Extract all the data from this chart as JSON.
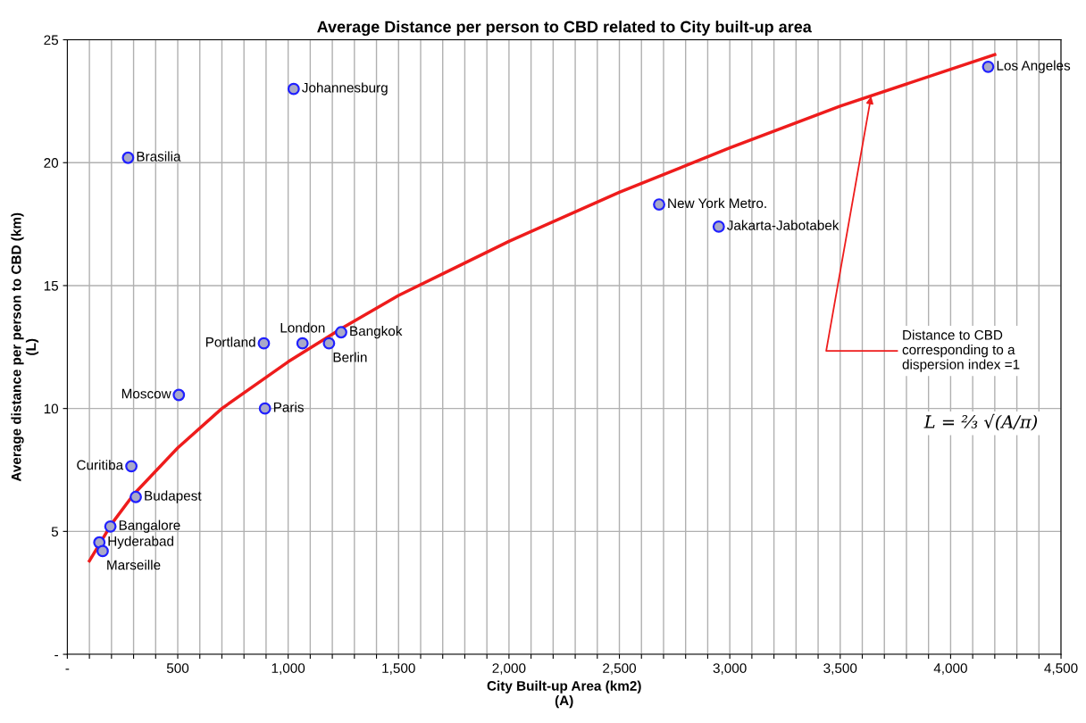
{
  "chart_data": {
    "type": "scatter",
    "title": "Average Distance per person to CBD related to City built-up area",
    "xlabel": "City Built-up Area (km2)\n(A)",
    "ylabel": "Average distance per person to CBD (km)\n(L)",
    "xlim": [
      0,
      4500
    ],
    "ylim": [
      0,
      25
    ],
    "xticks": [
      {
        "value": 0,
        "label": "-"
      },
      {
        "value": 100,
        "label": null
      },
      {
        "value": 200,
        "label": null
      },
      {
        "value": 300,
        "label": null
      },
      {
        "value": 400,
        "label": null
      },
      {
        "value": 500,
        "label": "500"
      },
      {
        "value": 600,
        "label": null
      },
      {
        "value": 700,
        "label": null
      },
      {
        "value": 800,
        "label": null
      },
      {
        "value": 900,
        "label": null
      },
      {
        "value": 1000,
        "label": "1,000"
      },
      {
        "value": 1100,
        "label": null
      },
      {
        "value": 1200,
        "label": null
      },
      {
        "value": 1300,
        "label": null
      },
      {
        "value": 1400,
        "label": null
      },
      {
        "value": 1500,
        "label": "1,500"
      },
      {
        "value": 1600,
        "label": null
      },
      {
        "value": 1700,
        "label": null
      },
      {
        "value": 1800,
        "label": null
      },
      {
        "value": 1900,
        "label": null
      },
      {
        "value": 2000,
        "label": "2,000"
      },
      {
        "value": 2100,
        "label": null
      },
      {
        "value": 2200,
        "label": null
      },
      {
        "value": 2300,
        "label": null
      },
      {
        "value": 2400,
        "label": null
      },
      {
        "value": 2500,
        "label": "2,500"
      },
      {
        "value": 2600,
        "label": null
      },
      {
        "value": 2700,
        "label": null
      },
      {
        "value": 2800,
        "label": null
      },
      {
        "value": 2900,
        "label": null
      },
      {
        "value": 3000,
        "label": "3,000"
      },
      {
        "value": 3100,
        "label": null
      },
      {
        "value": 3200,
        "label": null
      },
      {
        "value": 3300,
        "label": null
      },
      {
        "value": 3400,
        "label": null
      },
      {
        "value": 3500,
        "label": "3,500"
      },
      {
        "value": 3600,
        "label": null
      },
      {
        "value": 3700,
        "label": null
      },
      {
        "value": 3800,
        "label": null
      },
      {
        "value": 3900,
        "label": null
      },
      {
        "value": 4000,
        "label": "4,000"
      },
      {
        "value": 4100,
        "label": null
      },
      {
        "value": 4200,
        "label": null
      },
      {
        "value": 4300,
        "label": null
      },
      {
        "value": 4400,
        "label": null
      },
      {
        "value": 4500,
        "label": "4,500"
      }
    ],
    "yticks": [
      {
        "value": 0,
        "label": "-"
      },
      5,
      10,
      15,
      20,
      25
    ],
    "grid": true,
    "marker": "circle",
    "series": [
      {
        "name": "Los Angeles",
        "color": "#a9a9c8",
        "x": [
          4170
        ],
        "values": [
          23.9
        ]
      },
      {
        "name": "Johannesburg",
        "color": "#a9a9c8",
        "x": [
          1025
        ],
        "values": [
          23.0
        ]
      },
      {
        "name": "Brasilia",
        "color": "#a9a9c8",
        "x": [
          275
        ],
        "values": [
          20.2
        ]
      },
      {
        "name": "New York Metro.",
        "color": "#a9a9c8",
        "x": [
          2680
        ],
        "values": [
          18.3
        ]
      },
      {
        "name": "Jakarta-Jabotabek",
        "color": "#a9a9c8",
        "x": [
          2950
        ],
        "values": [
          17.4
        ]
      },
      {
        "name": "Bangkok",
        "color": "#a9a9c8",
        "x": [
          1240
        ],
        "values": [
          13.1
        ]
      },
      {
        "name": "Berlin",
        "color": "#a9a9c8",
        "x": [
          1185
        ],
        "values": [
          12.65
        ]
      },
      {
        "name": "London",
        "color": "#a9a9c8",
        "x": [
          1065
        ],
        "values": [
          12.65
        ]
      },
      {
        "name": "Portland",
        "color": "#a9a9c8",
        "x": [
          890
        ],
        "values": [
          12.65
        ]
      },
      {
        "name": "Moscow",
        "color": "#a9a9c8",
        "x": [
          505
        ],
        "values": [
          10.55
        ]
      },
      {
        "name": "Paris",
        "color": "#a9a9c8",
        "x": [
          895
        ],
        "values": [
          10.0
        ]
      },
      {
        "name": "Curitiba",
        "color": "#a9a9c8",
        "x": [
          290
        ],
        "values": [
          7.65
        ]
      },
      {
        "name": "Budapest",
        "color": "#a9a9c8",
        "x": [
          310
        ],
        "values": [
          6.4
        ]
      },
      {
        "name": "Bangalore",
        "color": "#a9a9c8",
        "x": [
          195
        ],
        "values": [
          5.2
        ]
      },
      {
        "name": "Hyderabad",
        "color": "#a9a9c8",
        "x": [
          145
        ],
        "values": [
          4.55
        ]
      },
      {
        "name": "Marseille",
        "color": "#a9a9c8",
        "x": [
          160
        ],
        "values": [
          4.2
        ]
      },
      {
        "type": "line",
        "color": "#ee1c1c",
        "marker": "none",
        "x": [
          100,
          200,
          300,
          500,
          700,
          1000,
          1250,
          1500,
          2000,
          2500,
          3000,
          3500,
          4000,
          4200
        ],
        "values": [
          3.8,
          5.3,
          6.5,
          8.4,
          10.0,
          11.9,
          13.3,
          14.6,
          16.8,
          18.8,
          20.6,
          22.3,
          23.8,
          24.4
        ]
      }
    ],
    "annotations": [
      {
        "text": "Distance to CBD\ncorresponding to a\ndispersion index =1",
        "x": 3640,
        "y": 22.7
      },
      "L = ⅔ √(A/π)"
    ]
  }
}
